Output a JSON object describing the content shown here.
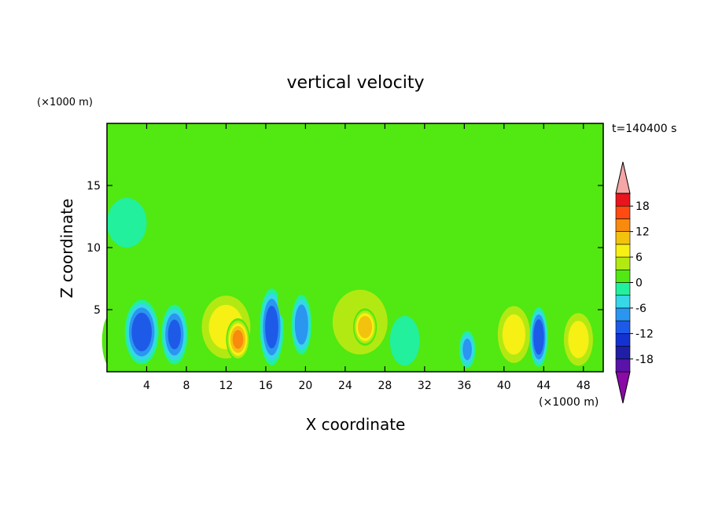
{
  "chart_data": {
    "type": "heatmap",
    "title": "vertical velocity",
    "xlabel": "X coordinate",
    "ylabel": "Z coordinate",
    "x_unit": "(×1000 m)",
    "y_unit": "(×1000 m)",
    "time_label": "t=140400 s",
    "xlim": [
      0,
      50
    ],
    "ylim": [
      0,
      20
    ],
    "x_ticks": [
      4,
      8,
      12,
      16,
      20,
      24,
      28,
      32,
      36,
      40,
      44,
      48
    ],
    "y_ticks": [
      5,
      10,
      15
    ],
    "background_level": 0,
    "colorbar": {
      "levels": [
        -21,
        -18,
        -15,
        -12,
        -9,
        -6,
        -3,
        0,
        3,
        6,
        9,
        12,
        15,
        18,
        21
      ],
      "tick_labels": [
        "18",
        "12",
        "6",
        "0",
        "-6",
        "-12",
        "-18"
      ],
      "tick_values": [
        18,
        12,
        6,
        0,
        -6,
        -12,
        -18
      ],
      "colors": [
        "#8a0aa6",
        "#5a12a8",
        "#1e1ea6",
        "#1432d2",
        "#1e5ae8",
        "#2a96f0",
        "#37d7e7",
        "#22f09c",
        "#52e812",
        "#b3e912",
        "#f6f014",
        "#f2c20f",
        "#f88a0d",
        "#ff4a12",
        "#e8141e",
        "#f6a6a6"
      ]
    },
    "features": [
      {
        "x": 0.5,
        "z": 2.5,
        "rx": 1.0,
        "rz": 2.2,
        "w": 5
      },
      {
        "x": 3.5,
        "z": 3.2,
        "rx": 1.7,
        "rz": 2.6,
        "w": -14
      },
      {
        "x": 6.8,
        "z": 3.0,
        "rx": 1.3,
        "rz": 2.4,
        "w": -12
      },
      {
        "x": 12.0,
        "z": 3.6,
        "rx": 3.0,
        "rz": 3.1,
        "w": 9
      },
      {
        "x": 13.2,
        "z": 2.6,
        "rx": 1.2,
        "rz": 1.7,
        "w": 15
      },
      {
        "x": 16.6,
        "z": 3.6,
        "rx": 1.2,
        "rz": 3.1,
        "w": -13
      },
      {
        "x": 18.0,
        "z": 5.8,
        "rx": 0.8,
        "rz": 1.6,
        "w": 4
      },
      {
        "x": 19.6,
        "z": 3.8,
        "rx": 1.0,
        "rz": 2.4,
        "w": -11
      },
      {
        "x": 25.5,
        "z": 4.0,
        "rx": 3.5,
        "rz": 3.3,
        "w": 8
      },
      {
        "x": 26.0,
        "z": 3.6,
        "rx": 1.2,
        "rz": 1.5,
        "w": 14
      },
      {
        "x": 30.0,
        "z": 2.5,
        "rx": 1.5,
        "rz": 2.0,
        "w": -4
      },
      {
        "x": 36.3,
        "z": 1.8,
        "rx": 0.8,
        "rz": 1.5,
        "w": -9
      },
      {
        "x": 41.0,
        "z": 3.0,
        "rx": 2.0,
        "rz": 2.8,
        "w": 9
      },
      {
        "x": 43.5,
        "z": 2.8,
        "rx": 0.9,
        "rz": 2.4,
        "w": -14
      },
      {
        "x": 47.5,
        "z": 2.6,
        "rx": 1.8,
        "rz": 2.6,
        "w": 9
      },
      {
        "x": 2.0,
        "z": 12.0,
        "rx": 2.0,
        "rz": 2.0,
        "w": -3
      },
      {
        "x": 8.0,
        "z": 16.0,
        "rx": 5.0,
        "rz": 3.0,
        "w": 2
      },
      {
        "x": 30.0,
        "z": 17.0,
        "rx": 6.0,
        "rz": 2.5,
        "w": 2
      },
      {
        "x": 40.0,
        "z": 10.0,
        "rx": 4.0,
        "rz": 2.0,
        "w": 2
      }
    ]
  }
}
